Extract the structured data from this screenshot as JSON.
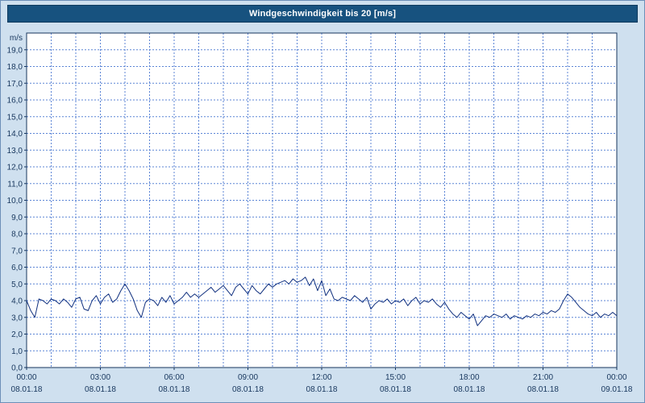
{
  "chart_data": {
    "type": "line",
    "title": "Windgeschwindigkeit bis 20 [m/s]",
    "ylabel": "m/s",
    "ylim": [
      0,
      20
    ],
    "y_tick_step": 1,
    "y_tick_labels": [
      "0,0",
      "1,0",
      "2,0",
      "3,0",
      "4,0",
      "5,0",
      "6,0",
      "7,0",
      "8,0",
      "9,0",
      "10,0",
      "11,0",
      "12,0",
      "13,0",
      "14,0",
      "15,0",
      "16,0",
      "17,0",
      "18,0",
      "19,0"
    ],
    "x_hours_span": 24,
    "x_ticks": [
      {
        "hour": 0,
        "time": "00:00",
        "date": "08.01.18"
      },
      {
        "hour": 3,
        "time": "03:00",
        "date": "08.01.18"
      },
      {
        "hour": 6,
        "time": "06:00",
        "date": "08.01.18"
      },
      {
        "hour": 9,
        "time": "09:00",
        "date": "08.01.18"
      },
      {
        "hour": 12,
        "time": "12:00",
        "date": "08.01.18"
      },
      {
        "hour": 15,
        "time": "15:00",
        "date": "08.01.18"
      },
      {
        "hour": 18,
        "time": "18:00",
        "date": "08.01.18"
      },
      {
        "hour": 21,
        "time": "21:00",
        "date": "08.01.18"
      },
      {
        "hour": 24,
        "time": "00:00",
        "date": "09.01.18"
      }
    ],
    "grid": {
      "x_interval_hours": 1,
      "y_interval": 1,
      "style": "dashed"
    },
    "legend": "none",
    "colors": {
      "background": "#cfe0ef",
      "plot_background": "#ffffff",
      "title_bar": "#17527f",
      "title_text": "#ffffff",
      "grid": "#5c85d6",
      "axis": "#17365d",
      "text": "#17365d",
      "series": "#10307f"
    },
    "series": [
      {
        "name": "Windgeschwindigkeit",
        "unit": "m/s",
        "interval_minutes": 10,
        "color": "#10307f",
        "values": [
          4.0,
          3.4,
          3.0,
          4.1,
          4.0,
          3.8,
          4.1,
          4.0,
          3.8,
          4.1,
          3.9,
          3.6,
          4.1,
          4.2,
          3.5,
          3.4,
          4.0,
          4.3,
          3.8,
          4.2,
          4.4,
          3.9,
          4.1,
          4.6,
          5.0,
          4.6,
          4.1,
          3.4,
          3.0,
          3.9,
          4.1,
          4.0,
          3.7,
          4.2,
          3.9,
          4.3,
          3.8,
          4.0,
          4.2,
          4.5,
          4.2,
          4.4,
          4.2,
          4.4,
          4.6,
          4.8,
          4.5,
          4.7,
          4.9,
          4.6,
          4.3,
          4.8,
          5.0,
          4.7,
          4.4,
          4.9,
          4.6,
          4.4,
          4.7,
          5.0,
          4.8,
          5.0,
          5.1,
          5.2,
          5.0,
          5.3,
          5.1,
          5.2,
          5.4,
          4.9,
          5.3,
          4.6,
          5.2,
          4.3,
          4.7,
          4.1,
          4.0,
          4.2,
          4.1,
          4.0,
          4.3,
          4.1,
          3.9,
          4.2,
          3.5,
          3.8,
          4.0,
          3.9,
          4.1,
          3.8,
          4.0,
          3.9,
          4.1,
          3.7,
          4.0,
          4.2,
          3.8,
          4.0,
          3.9,
          4.1,
          3.8,
          3.6,
          3.9,
          3.5,
          3.2,
          3.0,
          3.3,
          3.1,
          2.9,
          3.2,
          2.5,
          2.8,
          3.1,
          3.0,
          3.2,
          3.1,
          3.0,
          3.2,
          2.9,
          3.1,
          3.0,
          2.9,
          3.1,
          3.0,
          3.2,
          3.1,
          3.3,
          3.2,
          3.4,
          3.3,
          3.5,
          4.0,
          4.4,
          4.2,
          3.9,
          3.6,
          3.4,
          3.2,
          3.1,
          3.3,
          3.0,
          3.2,
          3.1,
          3.3,
          3.1
        ]
      }
    ]
  }
}
